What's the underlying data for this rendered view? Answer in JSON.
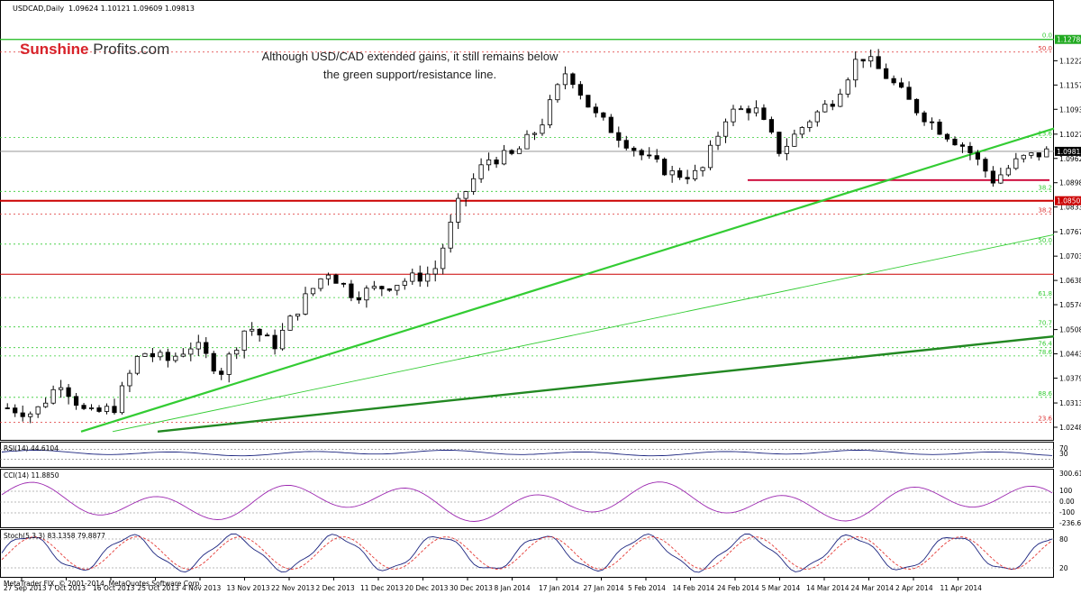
{
  "header": {
    "symbol": "USDCAD,Daily",
    "ohlc": "1.09624 1.10121 1.09609 1.09813"
  },
  "logo": {
    "part1": "Sunshine",
    "part2": "Profits.com"
  },
  "annotation": {
    "line1": "Although USD/CAD extended gains, it still remains below",
    "line2": "the green support/resistance line."
  },
  "footer": {
    "copyright": "MetaTrader FIX, © 2001-2014, MetaQuotes Software Corp."
  },
  "colors": {
    "up_candle": "#ffffff",
    "down_candle": "#000000",
    "green_line": "#33cc33",
    "dark_green_line": "#228822",
    "red_line": "#cc0000",
    "rsi_line": "#1a237e",
    "cci_line": "#9c27b0",
    "stoch_main": "#1a237e",
    "stoch_signal": "#e53935"
  },
  "chart_data": {
    "type": "candlestick",
    "price_axis": {
      "ylim": [
        1.0215,
        1.1345
      ],
      "tick_labels": [
        "1.12220",
        "1.11575",
        "1.10930",
        "1.10270",
        "1.09625",
        "1.08980",
        "1.08335",
        "1.07675",
        "1.07030",
        "1.06385",
        "1.05740",
        "1.05080",
        "1.04435",
        "1.03790",
        "1.03130",
        "1.02485"
      ],
      "price_tags": [
        {
          "value": 1.12786,
          "text": "1.12786",
          "color": "#22aa22"
        },
        {
          "value": 1.09813,
          "text": "1.09813",
          "color": "#000000"
        },
        {
          "value": 1.08502,
          "text": "1.08502",
          "color": "#cc0000"
        }
      ]
    },
    "x_labels": [
      "27 Sep 2013",
      "7 Oct 2013",
      "16 Oct 2013",
      "25 Oct 2013",
      "4 Nov 2013",
      "13 Nov 2013",
      "22 Nov 2013",
      "2 Dec 2013",
      "11 Dec 2013",
      "20 Dec 2013",
      "30 Dec 2013",
      "8 Jan 2014",
      "17 Jan 2014",
      "27 Jan 2014",
      "5 Feb 2014",
      "14 Feb 2014",
      "24 Feb 2014",
      "5 Mar 2014",
      "14 Mar 2014",
      "24 Mar 2014",
      "2 Apr 2014",
      "11 Apr 2014"
    ],
    "close_anchors": [
      1.03,
      1.0285,
      1.037,
      1.028,
      1.03,
      1.045,
      1.0425,
      1.047,
      1.0395,
      1.052,
      1.0465,
      1.0575,
      1.0665,
      1.06,
      1.062,
      1.064,
      1.066,
      1.0855,
      1.096,
      1.097,
      1.105,
      1.12,
      1.108,
      1.102,
      1.096,
      1.092,
      1.092,
      1.108,
      1.11,
      1.098,
      1.106,
      1.112,
      1.124,
      1.118,
      1.11,
      1.104,
      1.099,
      1.0905,
      1.096,
      1.098
    ],
    "fib_levels": {
      "right": [
        {
          "label": "0.0",
          "value": 1.12786,
          "color": "green"
        },
        {
          "label": "50.0",
          "value": 1.1245,
          "color": "red"
        },
        {
          "label": "23.6",
          "value": 1.1018,
          "color": "green"
        },
        {
          "label": "38.2",
          "value": 1.0875,
          "color": "green"
        },
        {
          "label": "38.2",
          "value": 1.0815,
          "color": "red"
        },
        {
          "label": "50.0",
          "value": 1.0735,
          "color": "green"
        },
        {
          "label": "61.8",
          "value": 1.0593,
          "color": "green"
        },
        {
          "label": "70.7",
          "value": 1.0515,
          "color": "green"
        },
        {
          "label": "76.4",
          "value": 1.046,
          "color": "green"
        },
        {
          "label": "78.6",
          "value": 1.0438,
          "color": "green"
        },
        {
          "label": "88.6",
          "value": 1.0328,
          "color": "green"
        },
        {
          "label": "23.6",
          "value": 1.0262,
          "color": "red"
        }
      ],
      "extra_lines": [
        {
          "value": 1.0655,
          "color": "red"
        },
        {
          "value": 1.085,
          "color": "red"
        }
      ]
    },
    "indicators": {
      "rsi": {
        "label": "RSI(14) 44.6104",
        "levels": [
          "70",
          "30"
        ]
      },
      "cci": {
        "label": "CCI(14) 11.8850",
        "levels": [
          "300.6127",
          "100",
          "0.00",
          "-100",
          "-236.6764"
        ]
      },
      "stoch": {
        "label": "Stoch(5,3,3) 83.1358 79.8877",
        "levels": [
          "80",
          "20"
        ]
      }
    }
  }
}
